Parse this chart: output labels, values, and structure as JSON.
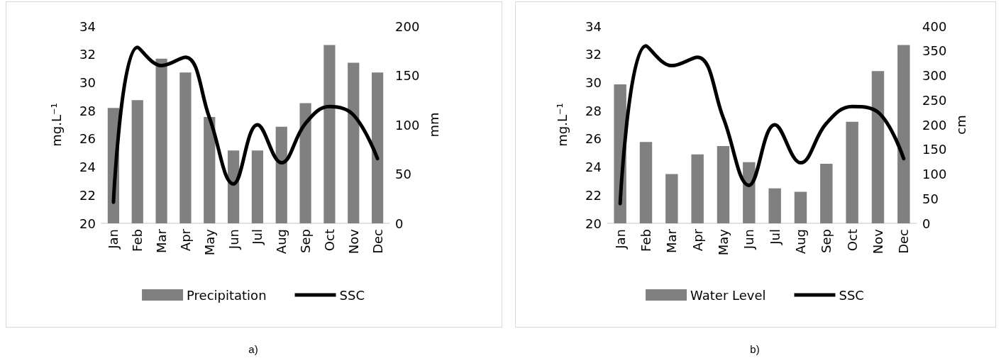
{
  "chart_data": [
    {
      "type": "bar",
      "categories": [
        "Jan",
        "Feb",
        "Mar",
        "Apr",
        "May",
        "Jun",
        "Jul",
        "Aug",
        "Sep",
        "Oct",
        "Nov",
        "Dec"
      ],
      "series": [
        {
          "name": "Precipitation",
          "axis": "y2",
          "color": "#808080",
          "values": [
            117,
            125,
            167,
            153,
            108,
            74,
            74,
            98,
            122,
            181,
            163,
            153
          ]
        },
        {
          "name": "SSC",
          "type": "line",
          "color": "#000000",
          "values": [
            21.5,
            32.5,
            31.2,
            31.8,
            27.5,
            22.8,
            27.0,
            24.3,
            27.1,
            28.3,
            27.7,
            24.6
          ]
        }
      ],
      "ylabel": "mg.L⁻¹",
      "y2label": "mm",
      "ylim": [
        20,
        34
      ],
      "yticks": [
        20,
        22,
        24,
        26,
        28,
        30,
        32,
        34
      ],
      "y2lim": [
        0,
        200
      ],
      "y2ticks": [
        0,
        50,
        100,
        150,
        200
      ],
      "legend": "bottom",
      "grid": false,
      "marker": "none",
      "annotations": [
        "a)"
      ]
    },
    {
      "type": "bar",
      "categories": [
        "Jan",
        "Feb",
        "Mar",
        "Apr",
        "May",
        "Jun",
        "Jul",
        "Aug",
        "Sep",
        "Oct",
        "Nov",
        "Dec"
      ],
      "series": [
        {
          "name": "Water Level",
          "axis": "y2",
          "color": "#808080",
          "values": [
            282,
            165,
            100,
            140,
            157,
            124,
            71,
            64,
            121,
            206,
            309,
            362
          ]
        },
        {
          "name": "SSC",
          "type": "line",
          "color": "#000000",
          "values": [
            21.4,
            32.6,
            31.2,
            31.8,
            27.5,
            22.7,
            27.0,
            24.3,
            27.1,
            28.3,
            27.9,
            24.6
          ]
        }
      ],
      "ylabel": "mg.L⁻¹",
      "y2label": "cm",
      "ylim": [
        20,
        34
      ],
      "yticks": [
        20,
        22,
        24,
        26,
        28,
        30,
        32,
        34
      ],
      "y2lim": [
        0,
        400
      ],
      "y2ticks": [
        0,
        50,
        100,
        150,
        200,
        250,
        300,
        350,
        400
      ],
      "legend": "bottom",
      "grid": false,
      "marker": "none",
      "annotations": [
        "b)"
      ]
    }
  ]
}
